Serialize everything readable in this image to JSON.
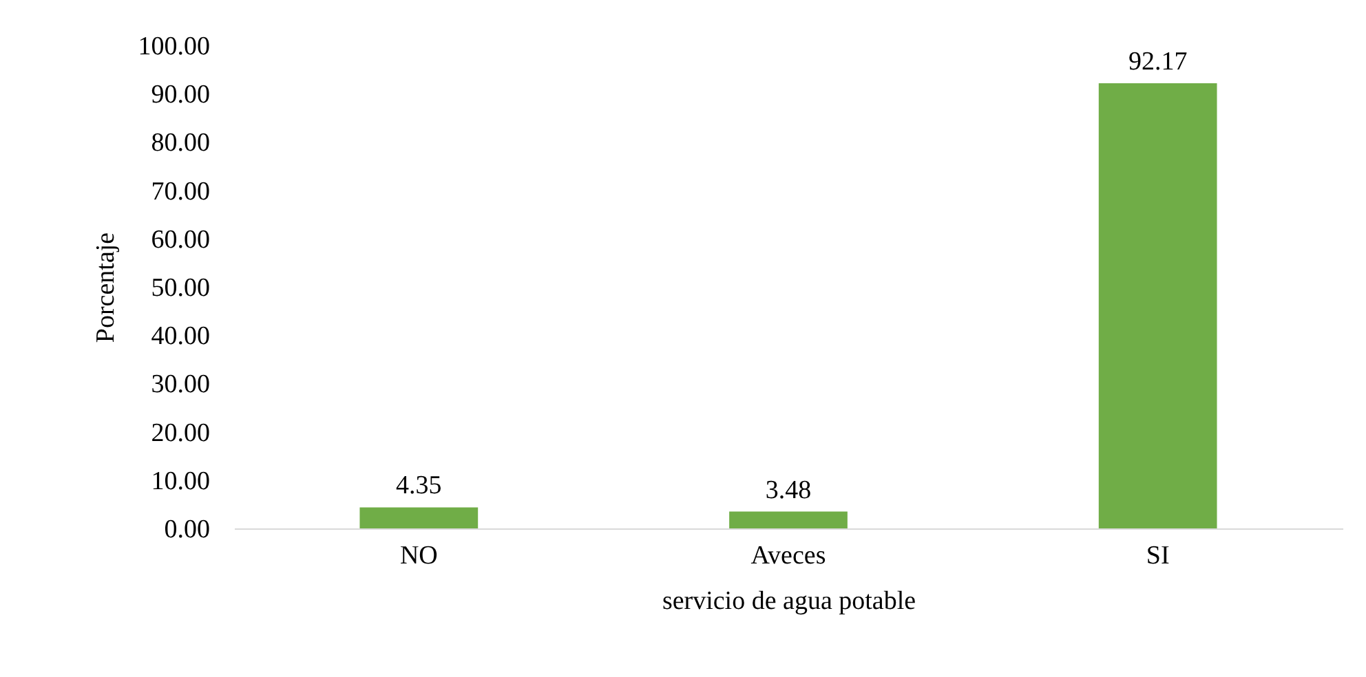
{
  "chart_data": {
    "type": "bar",
    "xlabel": "servicio de agua potable",
    "ylabel": "Porcentaje",
    "categories": [
      "NO",
      "Aveces",
      "SI"
    ],
    "values": [
      4.35,
      3.48,
      92.17
    ],
    "color": "#70ad47",
    "ylim": [
      0,
      100
    ],
    "yticks": [
      {
        "value": 0,
        "label": "0.00"
      },
      {
        "value": 10,
        "label": "10.00"
      },
      {
        "value": 20,
        "label": "20.00"
      },
      {
        "value": 30,
        "label": "30.00"
      },
      {
        "value": 40,
        "label": "40.00"
      },
      {
        "value": 50,
        "label": "50.00"
      },
      {
        "value": 60,
        "label": "60.00"
      },
      {
        "value": 70,
        "label": "70.00"
      },
      {
        "value": 80,
        "label": "80.00"
      },
      {
        "value": 90,
        "label": "90.00"
      },
      {
        "value": 100,
        "label": "100.00"
      }
    ],
    "data_labels": true,
    "grid": false
  }
}
